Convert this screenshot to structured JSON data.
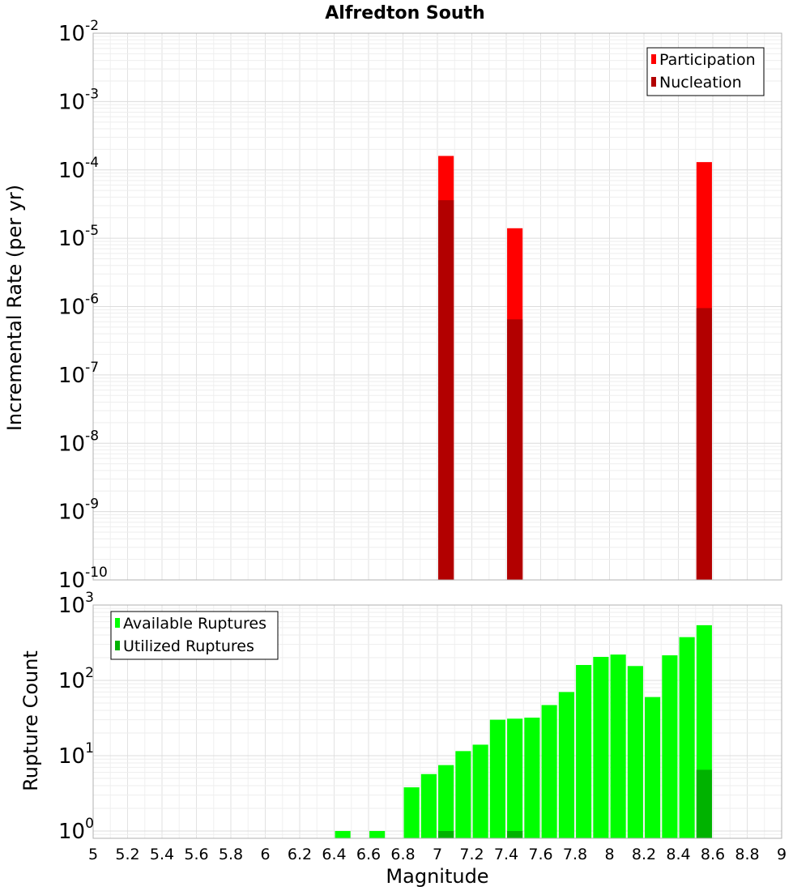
{
  "chart_data": [
    {
      "type": "bar",
      "title": "Alfredton South",
      "xlabel": "",
      "ylabel": "Incremental Rate (per yr)",
      "yscale": "log",
      "ylim": [
        1e-10,
        0.01
      ],
      "xlim": [
        5,
        9
      ],
      "grid": true,
      "legend": "top-right",
      "bar_width": 0.09,
      "series": [
        {
          "name": "Participation",
          "color": "#ff0000",
          "points": [
            {
              "x": 7.05,
              "y": 0.00016
            },
            {
              "x": 7.45,
              "y": 1.4e-05
            },
            {
              "x": 8.55,
              "y": 0.00013
            }
          ]
        },
        {
          "name": "Nucleation",
          "color": "#b20000",
          "points": [
            {
              "x": 7.05,
              "y": 3.6e-05
            },
            {
              "x": 7.45,
              "y": 6.5e-07
            },
            {
              "x": 8.55,
              "y": 9.5e-07
            }
          ]
        }
      ],
      "yticks": [
        {
          "value": 0.01,
          "base": "10",
          "exp": "-2"
        },
        {
          "value": 0.001,
          "base": "10",
          "exp": "-3"
        },
        {
          "value": 0.0001,
          "base": "10",
          "exp": "-4"
        },
        {
          "value": 1e-05,
          "base": "10",
          "exp": "-5"
        },
        {
          "value": 1e-06,
          "base": "10",
          "exp": "-6"
        },
        {
          "value": 1e-07,
          "base": "10",
          "exp": "-7"
        },
        {
          "value": 1e-08,
          "base": "10",
          "exp": "-8"
        },
        {
          "value": 1e-09,
          "base": "10",
          "exp": "-9"
        },
        {
          "value": 1e-10,
          "base": "10",
          "exp": "-10"
        }
      ]
    },
    {
      "type": "bar",
      "title": "",
      "xlabel": "Magnitude",
      "ylabel": "Rupture Count",
      "yscale": "log",
      "ylim": [
        0.8,
        1000
      ],
      "xlim": [
        5,
        9
      ],
      "grid": true,
      "legend": "top-left",
      "bar_width": 0.09,
      "series": [
        {
          "name": "Available Ruptures",
          "color": "#00ff00",
          "points": [
            {
              "x": 6.45,
              "y": 1
            },
            {
              "x": 6.65,
              "y": 1
            },
            {
              "x": 6.85,
              "y": 3.8
            },
            {
              "x": 6.95,
              "y": 5.7
            },
            {
              "x": 7.05,
              "y": 7.5
            },
            {
              "x": 7.15,
              "y": 11.5
            },
            {
              "x": 7.25,
              "y": 14
            },
            {
              "x": 7.35,
              "y": 30
            },
            {
              "x": 7.45,
              "y": 31
            },
            {
              "x": 7.55,
              "y": 32
            },
            {
              "x": 7.65,
              "y": 47
            },
            {
              "x": 7.75,
              "y": 70
            },
            {
              "x": 7.85,
              "y": 160
            },
            {
              "x": 7.95,
              "y": 205
            },
            {
              "x": 8.05,
              "y": 220
            },
            {
              "x": 8.15,
              "y": 155
            },
            {
              "x": 8.25,
              "y": 60
            },
            {
              "x": 8.35,
              "y": 215
            },
            {
              "x": 8.45,
              "y": 375
            },
            {
              "x": 8.55,
              "y": 540
            }
          ]
        },
        {
          "name": "Utilized Ruptures",
          "color": "#00b200",
          "points": [
            {
              "x": 7.05,
              "y": 1
            },
            {
              "x": 7.45,
              "y": 1
            },
            {
              "x": 8.55,
              "y": 6.5
            }
          ]
        }
      ],
      "xticks": [
        "5",
        "5.2",
        "5.4",
        "5.6",
        "5.8",
        "6",
        "6.2",
        "6.4",
        "6.6",
        "6.8",
        "7",
        "7.2",
        "7.4",
        "7.6",
        "7.8",
        "8",
        "8.2",
        "8.4",
        "8.6",
        "8.8",
        "9"
      ],
      "yticks": [
        {
          "value": 1000,
          "base": "10",
          "exp": "3"
        },
        {
          "value": 100,
          "base": "10",
          "exp": "2"
        },
        {
          "value": 10,
          "base": "10",
          "exp": "1"
        },
        {
          "value": 1,
          "base": "10",
          "exp": "0"
        }
      ]
    }
  ]
}
